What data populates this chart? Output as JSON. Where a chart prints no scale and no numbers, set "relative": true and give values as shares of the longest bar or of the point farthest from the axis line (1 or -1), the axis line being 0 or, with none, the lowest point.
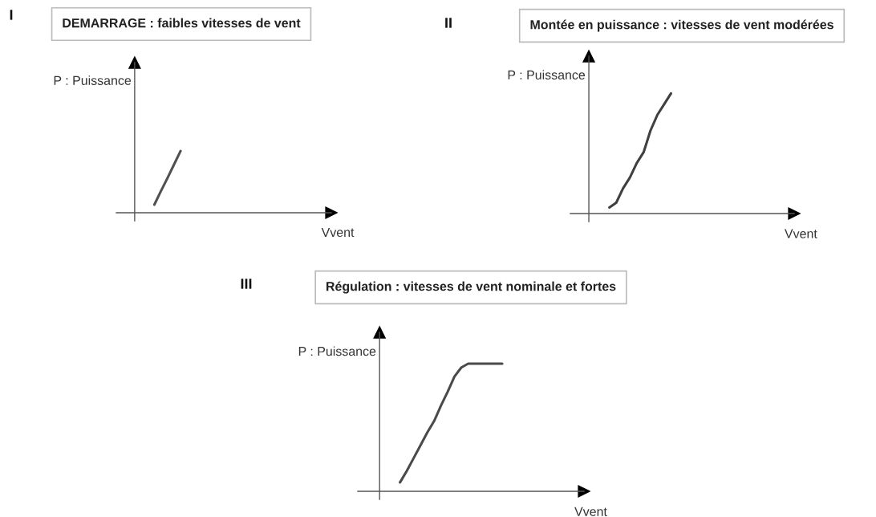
{
  "chart_data": [
    {
      "type": "line",
      "title": "DEMARRAGE : faibles vitesses de vent",
      "annotations": [
        "I"
      ],
      "xlabel": "Vvent",
      "ylabel": "P : Puissance",
      "relative": true,
      "color": "#505050",
      "categories": [
        null,
        null,
        null,
        null,
        null,
        null,
        null,
        null,
        null,
        null,
        null,
        null,
        null,
        null,
        null,
        null,
        null,
        null,
        null,
        null,
        null,
        null,
        null,
        null,
        null,
        null,
        null,
        null,
        null,
        null
      ],
      "values": [
        null,
        null,
        null,
        0.13,
        0.35,
        0.56,
        0.78,
        1.0,
        null,
        null,
        null,
        null,
        null,
        null,
        null,
        null,
        null,
        null,
        null,
        null,
        null,
        null,
        null,
        null,
        null,
        null,
        null,
        null,
        null,
        null
      ]
    },
    {
      "type": "line",
      "title": "Montée en puissance : vitesses de vent modérées",
      "annotations": [
        "II"
      ],
      "xlabel": "Vvent",
      "ylabel": "P : Puissance",
      "relative": true,
      "color": "#404040",
      "categories": [
        null,
        null,
        null,
        null,
        null,
        null,
        null,
        null,
        null,
        null,
        null,
        null,
        null,
        null,
        null,
        null,
        null,
        null,
        null,
        null,
        null,
        null,
        null,
        null,
        null,
        null,
        null,
        null,
        null,
        null
      ],
      "values": [
        null,
        null,
        null,
        0.05,
        0.09,
        0.21,
        0.3,
        0.42,
        0.51,
        0.69,
        0.82,
        0.91,
        1.0,
        null,
        null,
        null,
        null,
        null,
        null,
        null,
        null,
        null,
        null,
        null,
        null,
        null,
        null,
        null,
        null,
        null
      ]
    },
    {
      "type": "line",
      "title": "Régulation : vitesses de vent nominale et fortes",
      "annotations": [
        "III"
      ],
      "xlabel": "Vvent",
      "ylabel": "P : Puissance",
      "relative": true,
      "color": "#4a4a4a",
      "categories": [
        null,
        null,
        null,
        null,
        null,
        null,
        null,
        null,
        null,
        null,
        null,
        null,
        null,
        null,
        null,
        null,
        null,
        null,
        null,
        null,
        null,
        null,
        null,
        null,
        null,
        null,
        null,
        null,
        null,
        null
      ],
      "values": [
        null,
        null,
        null,
        0.07,
        0.16,
        0.26,
        0.36,
        0.46,
        0.55,
        0.67,
        0.78,
        0.9,
        0.97,
        1.0,
        1.0,
        1.0,
        1.0,
        1.0,
        1.0,
        null,
        null,
        null,
        null,
        null,
        null,
        null,
        null,
        null,
        null,
        null
      ]
    }
  ]
}
